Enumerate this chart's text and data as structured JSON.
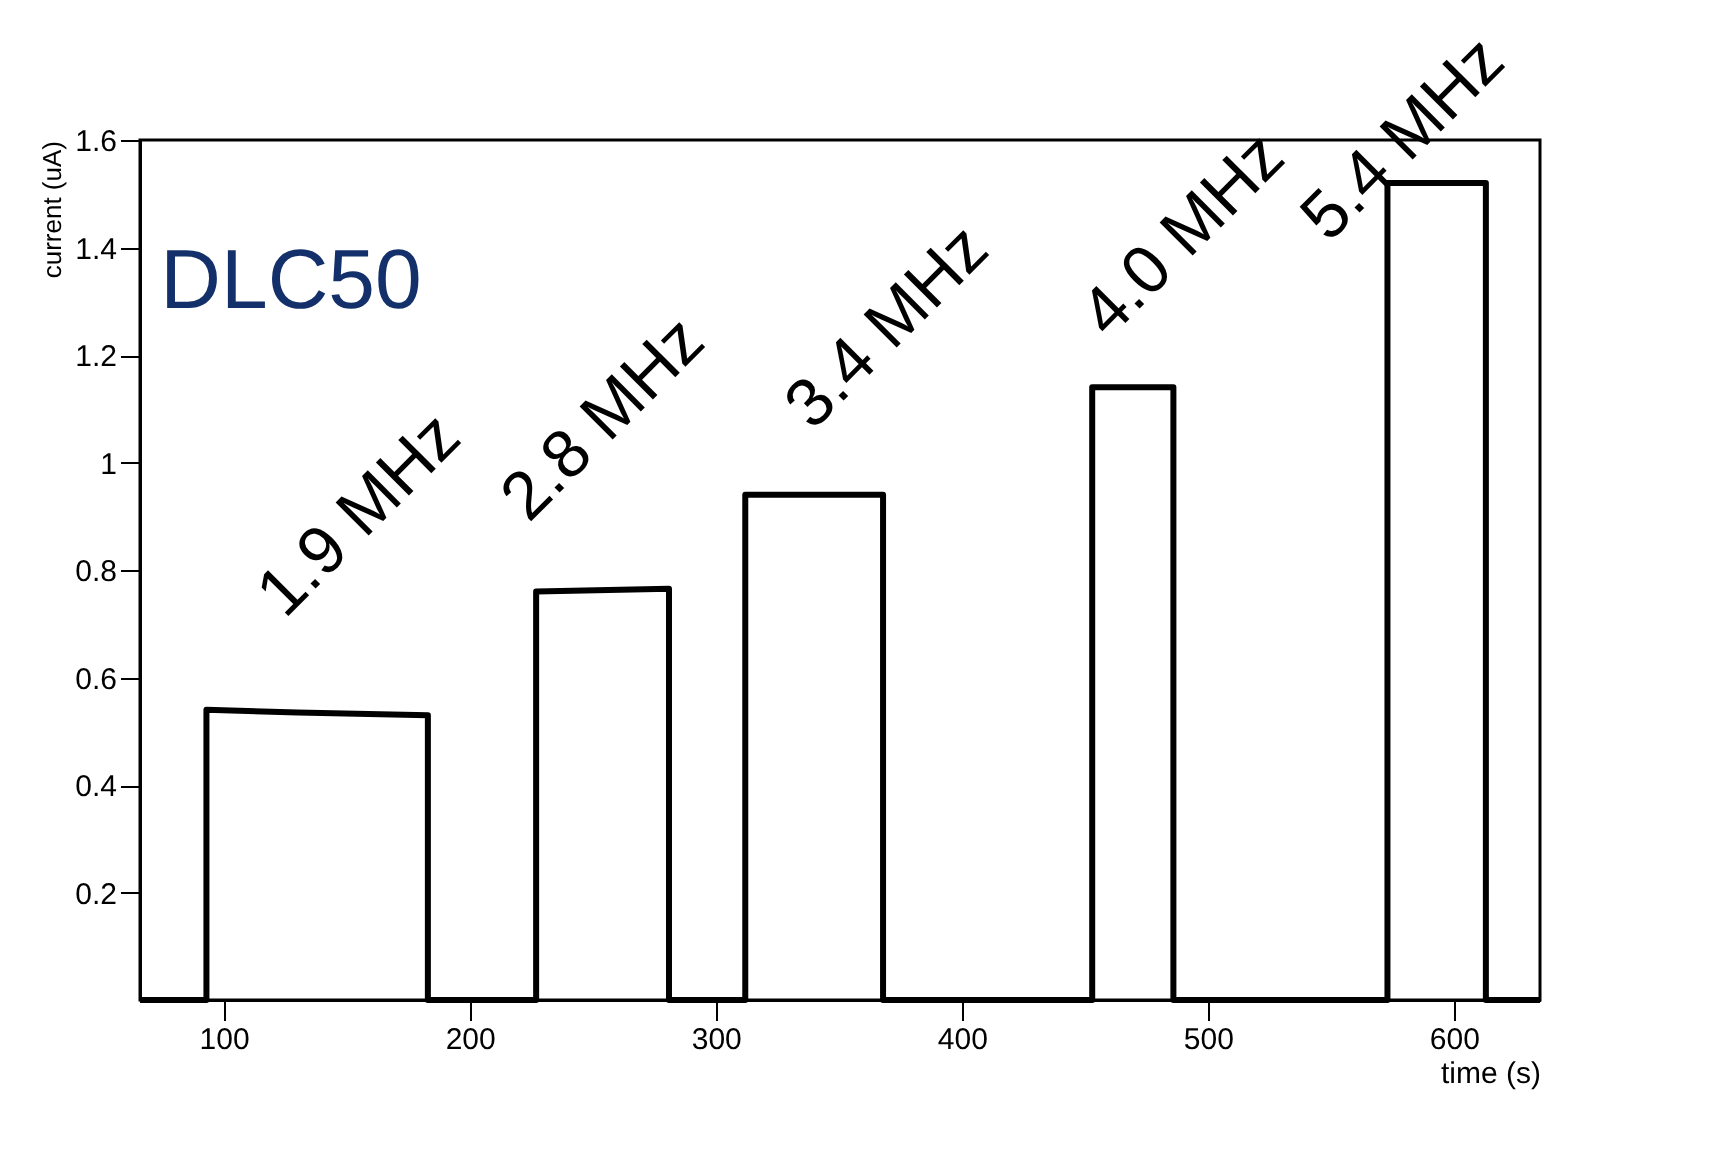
{
  "chart_data": {
    "type": "line",
    "xlabel": "time (s)",
    "ylabel": "current (uA)",
    "x": [
      66,
      93,
      93,
      130,
      183,
      183,
      227,
      227,
      281,
      281,
      312,
      312,
      368,
      368,
      453,
      453,
      486,
      486,
      573,
      573,
      613,
      613,
      635
    ],
    "series": [
      {
        "color": "#000000",
        "values": [
          0,
          0,
          0.54,
          0.535,
          0.53,
          0,
          0,
          0.76,
          0.765,
          0,
          0,
          0.94,
          0.94,
          0,
          0,
          1.14,
          1.14,
          0,
          0,
          1.52,
          1.52,
          0,
          0
        ]
      }
    ],
    "xlim": [
      66,
      635
    ],
    "xticks": [
      100,
      200,
      300,
      400,
      500,
      600
    ],
    "ylim": [
      0,
      1.6
    ],
    "yticks": [
      0.2,
      0.4,
      0.6,
      0.8,
      1,
      1.2,
      1.4,
      1.6
    ],
    "grid": false,
    "title": "DLC50",
    "annotations": [
      "1.9 MHz",
      "2.8 MHz",
      "3.4 MHz",
      "4.0 MHz",
      "5.4 MHz"
    ]
  }
}
